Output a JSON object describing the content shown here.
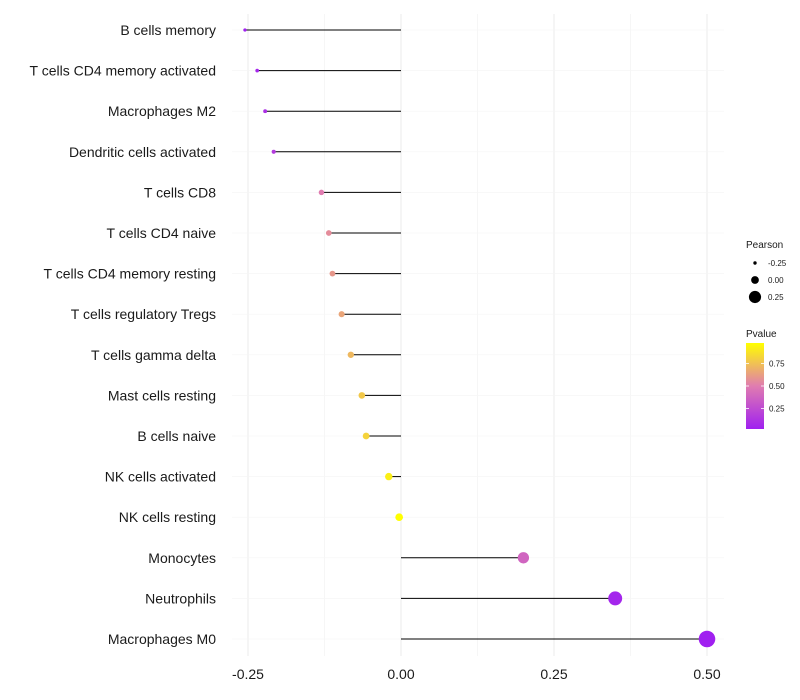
{
  "chart_data": {
    "type": "lollipop",
    "title": "",
    "xlabel": "",
    "ylabel": "",
    "xlim": [
      -0.3,
      0.52
    ],
    "x_ticks": [
      -0.25,
      0.0,
      0.25,
      0.5
    ],
    "x_tick_labels": [
      "-0.25",
      "0.00",
      "0.25",
      "0.50"
    ],
    "grid": true,
    "categories": [
      "B cells memory",
      "T cells CD4 memory activated",
      "Macrophages M2",
      "Dendritic cells activated",
      "T cells CD8",
      "T cells CD4 naive",
      "T cells CD4 memory resting",
      "T cells regulatory  Tregs",
      "T cells gamma delta",
      "Mast cells resting",
      "B cells naive",
      "NK cells activated",
      "NK cells resting",
      "Monocytes",
      "Neutrophils",
      "Macrophages M0"
    ],
    "pearson": [
      -0.255,
      -0.235,
      -0.222,
      -0.208,
      -0.13,
      -0.118,
      -0.112,
      -0.097,
      -0.082,
      -0.064,
      -0.057,
      -0.02,
      -0.003,
      0.2,
      0.35,
      0.5
    ],
    "pvalue": [
      0.02,
      0.06,
      0.1,
      0.16,
      0.5,
      0.56,
      0.6,
      0.65,
      0.72,
      0.78,
      0.82,
      0.92,
      0.98,
      0.38,
      0.05,
      0.01
    ],
    "legend": {
      "position": "right",
      "size_title": "Pearson",
      "size_labels": [
        "-0.25",
        "0.00",
        "0.25"
      ],
      "size_values": [
        -0.25,
        0.0,
        0.25
      ],
      "color_title": "Pvalue",
      "color_labels": [
        "0.75",
        "0.50",
        "0.25"
      ],
      "color_values": [
        0.75,
        0.5,
        0.25
      ],
      "color_low": "#a020f0",
      "color_mid": "#e07cb0",
      "color_high": "#ffff00"
    }
  }
}
